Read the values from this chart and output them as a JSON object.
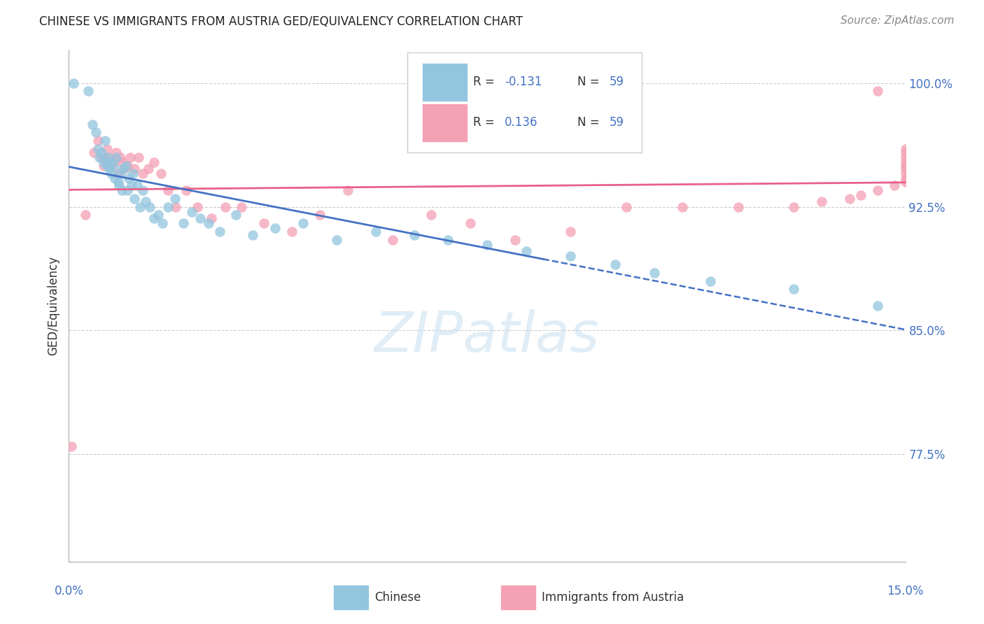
{
  "title": "CHINESE VS IMMIGRANTS FROM AUSTRIA GED/EQUIVALENCY CORRELATION CHART",
  "source": "Source: ZipAtlas.com",
  "ylabel": "GED/Equivalency",
  "ytick_vals": [
    100.0,
    92.5,
    85.0,
    77.5
  ],
  "ytick_labels": [
    "100.0%",
    "92.5%",
    "85.0%",
    "77.5%"
  ],
  "xmin": 0.0,
  "xmax": 15.0,
  "ymin": 71.0,
  "ymax": 102.0,
  "color_blue": "#92c5de",
  "color_pink": "#f4a0b5",
  "color_blue_line": "#4472c4",
  "color_pink_line": "#e8608a",
  "color_blue_label": "#4472c4",
  "watermark_color": "#c8dff0",
  "chinese_x": [
    0.08,
    0.35,
    0.42,
    0.48,
    0.52,
    0.55,
    0.58,
    0.62,
    0.65,
    0.68,
    0.7,
    0.72,
    0.74,
    0.76,
    0.8,
    0.82,
    0.85,
    0.88,
    0.9,
    0.92,
    0.95,
    0.98,
    1.02,
    1.05,
    1.08,
    1.12,
    1.15,
    1.18,
    1.22,
    1.28,
    1.32,
    1.38,
    1.45,
    1.52,
    1.6,
    1.68,
    1.78,
    1.9,
    2.05,
    2.2,
    2.35,
    2.5,
    2.7,
    3.0,
    3.3,
    3.7,
    4.2,
    4.8,
    5.5,
    6.2,
    6.8,
    7.5,
    8.2,
    9.0,
    9.8,
    10.5,
    11.5,
    13.0,
    14.5
  ],
  "chinese_y": [
    100.0,
    99.5,
    97.5,
    97.0,
    96.0,
    95.5,
    95.8,
    95.2,
    96.5,
    95.0,
    95.5,
    94.8,
    95.2,
    94.5,
    95.0,
    94.2,
    95.5,
    94.0,
    93.8,
    94.5,
    93.5,
    94.8,
    95.0,
    93.5,
    94.2,
    93.8,
    94.5,
    93.0,
    93.8,
    92.5,
    93.5,
    92.8,
    92.5,
    91.8,
    92.0,
    91.5,
    92.5,
    93.0,
    91.5,
    92.2,
    91.8,
    91.5,
    91.0,
    92.0,
    90.8,
    91.2,
    91.5,
    90.5,
    91.0,
    90.8,
    90.5,
    90.2,
    89.8,
    89.5,
    89.0,
    88.5,
    88.0,
    87.5,
    86.5
  ],
  "austria_x": [
    0.05,
    0.3,
    0.45,
    0.52,
    0.58,
    0.62,
    0.65,
    0.68,
    0.72,
    0.75,
    0.8,
    0.85,
    0.88,
    0.92,
    0.95,
    1.0,
    1.05,
    1.1,
    1.18,
    1.25,
    1.32,
    1.42,
    1.52,
    1.65,
    1.78,
    1.92,
    2.1,
    2.3,
    2.55,
    2.8,
    3.1,
    3.5,
    4.0,
    4.5,
    5.0,
    5.8,
    6.5,
    7.2,
    8.0,
    9.0,
    10.0,
    11.0,
    12.0,
    13.0,
    13.5,
    14.0,
    14.2,
    14.5,
    14.8,
    15.0,
    15.0,
    15.0,
    15.0,
    15.0,
    15.0,
    15.0,
    15.0,
    15.0,
    14.5
  ],
  "austria_y": [
    78.0,
    92.0,
    95.8,
    96.5,
    95.5,
    95.0,
    95.5,
    96.0,
    95.5,
    95.0,
    95.2,
    95.8,
    94.5,
    95.5,
    95.2,
    94.8,
    95.0,
    95.5,
    94.8,
    95.5,
    94.5,
    94.8,
    95.2,
    94.5,
    93.5,
    92.5,
    93.5,
    92.5,
    91.8,
    92.5,
    92.5,
    91.5,
    91.0,
    92.0,
    93.5,
    90.5,
    92.0,
    91.5,
    90.5,
    91.0,
    92.5,
    92.5,
    92.5,
    92.5,
    92.8,
    93.0,
    93.2,
    93.5,
    93.8,
    94.0,
    94.2,
    94.5,
    94.8,
    95.0,
    95.2,
    95.5,
    95.8,
    96.0,
    99.5
  ],
  "blue_line_solid_end": 8.5,
  "legend_r1": "-0.131",
  "legend_r2": "0.136",
  "legend_n": "59"
}
